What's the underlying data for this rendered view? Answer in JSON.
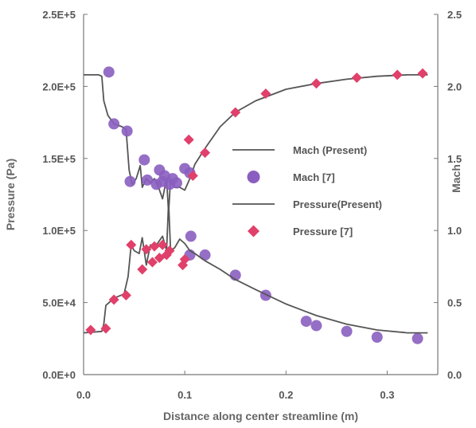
{
  "chart_data": {
    "type": "line",
    "title": "",
    "xlabel": "Distance along center streamline (m)",
    "ylabel": "Pressure (Pa)",
    "y2label": "Mach",
    "xlim": [
      0,
      0.35
    ],
    "ylim": [
      0,
      250000
    ],
    "y2lim": [
      0,
      2.5
    ],
    "x_ticks": [
      "0.0",
      "0.1",
      "0.2",
      "0.3"
    ],
    "x_tick_values": [
      0,
      0.1,
      0.2,
      0.3
    ],
    "y_ticks": [
      "0.0E+0",
      "5.0E+4",
      "1.0E+5",
      "1.5E+5",
      "2.0E+5",
      "2.5E+5"
    ],
    "y_tick_values": [
      0,
      50000,
      100000,
      150000,
      200000,
      250000
    ],
    "y2_ticks": [
      "0.0",
      "0.5",
      "1.0",
      "1.5",
      "2.0",
      "2.5"
    ],
    "y2_tick_values": [
      0,
      0.5,
      1.0,
      1.5,
      2.0,
      2.5
    ],
    "grid": false,
    "legend_position": "center-right",
    "series": [
      {
        "name": "Mach (Present)",
        "axis": "y2",
        "kind": "line",
        "color": "#555555",
        "points": [
          [
            0,
            2.08
          ],
          [
            0.015,
            2.08
          ],
          [
            0.018,
            2.07
          ],
          [
            0.02,
            1.9
          ],
          [
            0.024,
            1.8
          ],
          [
            0.03,
            1.74
          ],
          [
            0.038,
            1.72
          ],
          [
            0.042,
            1.7
          ],
          [
            0.045,
            1.42
          ],
          [
            0.048,
            1.32
          ],
          [
            0.052,
            1.36
          ],
          [
            0.056,
            1.45
          ],
          [
            0.058,
            1.3
          ],
          [
            0.062,
            1.36
          ],
          [
            0.066,
            1.33
          ],
          [
            0.07,
            1.36
          ],
          [
            0.074,
            1.3
          ],
          [
            0.078,
            1.22
          ],
          [
            0.082,
            1.36
          ],
          [
            0.084,
            1.12
          ],
          [
            0.086,
            1.36
          ],
          [
            0.09,
            1.3
          ],
          [
            0.095,
            1.3
          ],
          [
            0.1,
            1.28
          ],
          [
            0.105,
            1.36
          ],
          [
            0.11,
            1.46
          ],
          [
            0.12,
            1.57
          ],
          [
            0.135,
            1.72
          ],
          [
            0.15,
            1.82
          ],
          [
            0.17,
            1.9
          ],
          [
            0.2,
            1.98
          ],
          [
            0.23,
            2.02
          ],
          [
            0.26,
            2.05
          ],
          [
            0.29,
            2.07
          ],
          [
            0.32,
            2.08
          ],
          [
            0.34,
            2.08
          ]
        ]
      },
      {
        "name": "Mach [7]",
        "axis": "y2",
        "kind": "circle",
        "color": "#8a5ec0",
        "points": [
          [
            0.025,
            2.1
          ],
          [
            0.03,
            1.74
          ],
          [
            0.043,
            1.69
          ],
          [
            0.046,
            1.34
          ],
          [
            0.06,
            1.49
          ],
          [
            0.063,
            1.35
          ],
          [
            0.072,
            1.32
          ],
          [
            0.075,
            1.42
          ],
          [
            0.078,
            1.34
          ],
          [
            0.08,
            1.38
          ],
          [
            0.085,
            1.32
          ],
          [
            0.088,
            1.36
          ],
          [
            0.092,
            1.33
          ],
          [
            0.1,
            1.43
          ],
          [
            0.105,
            1.4
          ],
          [
            0.106,
            0.96
          ],
          [
            0.105,
            0.83
          ],
          [
            0.12,
            0.83
          ],
          [
            0.15,
            0.69
          ],
          [
            0.18,
            0.55
          ],
          [
            0.22,
            0.37
          ],
          [
            0.23,
            0.34
          ],
          [
            0.26,
            0.3
          ],
          [
            0.29,
            0.26
          ],
          [
            0.33,
            0.25
          ]
        ]
      },
      {
        "name": "Pressure(Present)",
        "axis": "y",
        "kind": "line",
        "color": "#555555",
        "points": [
          [
            0,
            29000
          ],
          [
            0.018,
            30000
          ],
          [
            0.02,
            35000
          ],
          [
            0.022,
            48000
          ],
          [
            0.03,
            53000
          ],
          [
            0.04,
            56000
          ],
          [
            0.044,
            68000
          ],
          [
            0.047,
            90000
          ],
          [
            0.05,
            86000
          ],
          [
            0.055,
            84000
          ],
          [
            0.058,
            95000
          ],
          [
            0.062,
            76000
          ],
          [
            0.066,
            90000
          ],
          [
            0.07,
            88000
          ],
          [
            0.074,
            92000
          ],
          [
            0.078,
            96000
          ],
          [
            0.082,
            86000
          ],
          [
            0.084,
            120000
          ],
          [
            0.086,
            86000
          ],
          [
            0.09,
            88000
          ],
          [
            0.095,
            94000
          ],
          [
            0.1,
            91000
          ],
          [
            0.105,
            86000
          ],
          [
            0.11,
            84000
          ],
          [
            0.12,
            79000
          ],
          [
            0.135,
            73000
          ],
          [
            0.15,
            66000
          ],
          [
            0.17,
            59000
          ],
          [
            0.2,
            49000
          ],
          [
            0.23,
            41000
          ],
          [
            0.26,
            35000
          ],
          [
            0.29,
            31000
          ],
          [
            0.32,
            29000
          ],
          [
            0.34,
            29000
          ]
        ]
      },
      {
        "name": "Pressure [7]",
        "axis": "y",
        "kind": "diamond",
        "color": "#e0406a",
        "points": [
          [
            0.007,
            31000
          ],
          [
            0.022,
            32000
          ],
          [
            0.03,
            52000
          ],
          [
            0.042,
            55000
          ],
          [
            0.047,
            90000
          ],
          [
            0.058,
            73000
          ],
          [
            0.062,
            87000
          ],
          [
            0.068,
            78000
          ],
          [
            0.07,
            89000
          ],
          [
            0.075,
            81000
          ],
          [
            0.078,
            90000
          ],
          [
            0.082,
            83000
          ],
          [
            0.085,
            86000
          ],
          [
            0.098,
            76000
          ],
          [
            0.1,
            80000
          ],
          [
            0.104,
            163000
          ],
          [
            0.108,
            138000
          ],
          [
            0.12,
            154000
          ],
          [
            0.15,
            182000
          ],
          [
            0.18,
            195000
          ],
          [
            0.23,
            202000
          ],
          [
            0.27,
            206000
          ],
          [
            0.31,
            208000
          ],
          [
            0.335,
            209000
          ]
        ]
      }
    ]
  }
}
